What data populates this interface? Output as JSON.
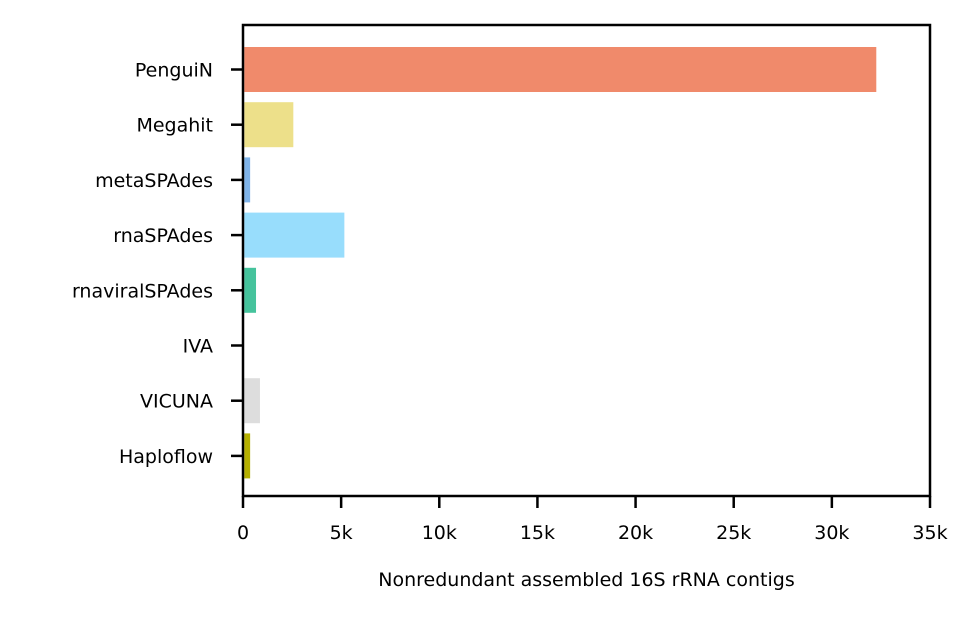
{
  "chart_data": {
    "type": "bar",
    "orientation": "horizontal",
    "categories": [
      "PenguiN",
      "Megahit",
      "metaSPAdes",
      "rnaSPAdes",
      "rnaviralSPAdes",
      "IVA",
      "VICUNA",
      "Haploflow"
    ],
    "values": [
      32200,
      2500,
      300,
      5100,
      600,
      0,
      800,
      300
    ],
    "colors": [
      "#f08a6b",
      "#ede08a",
      "#7fb3e8",
      "#98ddfc",
      "#45c39c",
      "#cccccc",
      "#dddddd",
      "#b5b000"
    ],
    "xlabel": "Nonredundant assembled 16S rRNA contigs",
    "ylabel": "",
    "title": "",
    "xlim": [
      0,
      35000
    ],
    "xticks": [
      0,
      5000,
      10000,
      15000,
      20000,
      25000,
      30000,
      35000
    ],
    "xtick_labels": [
      "0",
      "5k",
      "10k",
      "15k",
      "20k",
      "25k",
      "30k",
      "35k"
    ],
    "grid": false
  }
}
